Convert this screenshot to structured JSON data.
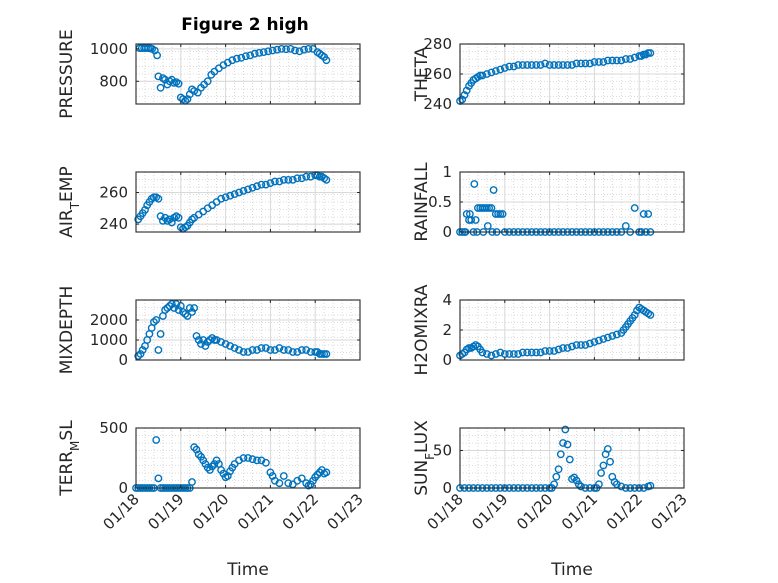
{
  "figure": {
    "title": "Figure 2 high",
    "marker_color": "#0072BD",
    "axis_color": "#262626",
    "grid_color": "#cfcfcf",
    "background": "#ffffff"
  },
  "chart_data": [
    {
      "type": "scatter",
      "ylabel": "PRESSURE",
      "xlabel": "",
      "xlim": [
        0,
        5
      ],
      "ylim": [
        660,
        1030
      ],
      "yticks": [
        800,
        1000
      ],
      "ytick_labels": [
        "800",
        "1000"
      ],
      "xticks": [
        0,
        1,
        2,
        3,
        4,
        5
      ],
      "xtick_labels": [],
      "grid": true,
      "x": [
        0.08,
        0.13,
        0.18,
        0.22,
        0.27,
        0.32,
        0.36,
        0.42,
        0.47,
        0.5,
        0.55,
        0.6,
        0.65,
        0.7,
        0.75,
        0.8,
        0.85,
        0.9,
        0.95,
        1.0,
        1.05,
        1.1,
        1.15,
        1.2,
        1.25,
        1.3,
        1.38,
        1.45,
        1.52,
        1.6,
        1.68,
        1.75,
        1.85,
        1.95,
        2.05,
        2.15,
        2.25,
        2.35,
        2.45,
        2.55,
        2.65,
        2.75,
        2.85,
        2.95,
        3.05,
        3.15,
        3.25,
        3.35,
        3.45,
        3.55,
        3.65,
        3.75,
        3.85,
        3.95,
        4.05,
        4.1,
        4.15,
        4.2,
        4.25
      ],
      "y": [
        1005,
        1005,
        1005,
        1005,
        1005,
        1003,
        1000,
        990,
        960,
        830,
        760,
        820,
        810,
        780,
        800,
        810,
        790,
        795,
        785,
        700,
        690,
        680,
        690,
        720,
        750,
        740,
        730,
        760,
        780,
        800,
        840,
        860,
        880,
        900,
        915,
        930,
        940,
        945,
        955,
        960,
        970,
        975,
        980,
        985,
        990,
        995,
        1000,
        998,
        1000,
        990,
        985,
        995,
        1000,
        1000,
        980,
        970,
        960,
        950,
        930
      ]
    },
    {
      "type": "scatter",
      "ylabel": "THETA",
      "xlabel": "",
      "xlim": [
        0,
        5
      ],
      "ylim": [
        240,
        280
      ],
      "yticks": [
        240,
        260,
        280
      ],
      "ytick_labels": [
        "240",
        "260",
        "280"
      ],
      "xticks": [
        0,
        1,
        2,
        3,
        4,
        5
      ],
      "xtick_labels": [],
      "grid": true,
      "x": [
        0.0,
        0.05,
        0.1,
        0.15,
        0.2,
        0.25,
        0.3,
        0.35,
        0.4,
        0.45,
        0.5,
        0.6,
        0.7,
        0.8,
        0.9,
        1.0,
        1.1,
        1.2,
        1.3,
        1.4,
        1.5,
        1.6,
        1.7,
        1.8,
        1.9,
        2.0,
        2.1,
        2.2,
        2.3,
        2.4,
        2.5,
        2.6,
        2.7,
        2.8,
        2.9,
        3.0,
        3.1,
        3.2,
        3.3,
        3.4,
        3.5,
        3.6,
        3.7,
        3.8,
        3.9,
        4.0,
        4.05,
        4.1,
        4.15,
        4.2,
        4.25
      ],
      "y": [
        242,
        243,
        246,
        249,
        252,
        254,
        256,
        257,
        258,
        259,
        259,
        260,
        261,
        262,
        263,
        264,
        265,
        265,
        266,
        266,
        266,
        266,
        266,
        266,
        267,
        266,
        266,
        266,
        266,
        266,
        266,
        267,
        267,
        267,
        267,
        268,
        268,
        268,
        269,
        269,
        269,
        269,
        270,
        270,
        271,
        272,
        272,
        273,
        273,
        274,
        274
      ]
    },
    {
      "type": "scatter",
      "ylabel": "AIR_TEMP",
      "xlabel": "",
      "xlim": [
        0,
        5
      ],
      "ylim": [
        235,
        273
      ],
      "yticks": [
        240,
        260
      ],
      "ytick_labels": [
        "240",
        "260"
      ],
      "xticks": [
        0,
        1,
        2,
        3,
        4,
        5
      ],
      "xtick_labels": [],
      "grid": true,
      "x": [
        0.05,
        0.1,
        0.15,
        0.2,
        0.25,
        0.3,
        0.35,
        0.4,
        0.45,
        0.5,
        0.55,
        0.6,
        0.65,
        0.7,
        0.75,
        0.8,
        0.85,
        0.9,
        0.95,
        1.0,
        1.05,
        1.1,
        1.15,
        1.2,
        1.25,
        1.3,
        1.4,
        1.5,
        1.6,
        1.7,
        1.8,
        1.9,
        2.0,
        2.1,
        2.2,
        2.3,
        2.4,
        2.5,
        2.6,
        2.7,
        2.8,
        2.9,
        3.0,
        3.1,
        3.2,
        3.3,
        3.4,
        3.5,
        3.6,
        3.7,
        3.8,
        3.9,
        4.0,
        4.05,
        4.1,
        4.15,
        4.2,
        4.25
      ],
      "y": [
        243,
        245,
        247,
        249,
        252,
        254,
        256,
        257,
        257,
        256,
        245,
        242,
        244,
        242,
        243,
        241,
        244,
        245,
        244,
        238,
        237,
        238,
        239,
        241,
        243,
        244,
        246,
        248,
        250,
        252,
        254,
        256,
        257,
        258,
        259,
        260,
        261,
        262,
        263,
        264,
        265,
        265,
        266,
        267,
        267,
        268,
        268,
        268,
        269,
        269,
        270,
        270,
        271,
        271,
        270,
        270,
        269,
        268
      ]
    },
    {
      "type": "scatter",
      "ylabel": "RAINFALL",
      "xlabel": "",
      "xlim": [
        0,
        5
      ],
      "ylim": [
        0,
        1
      ],
      "yticks": [
        0,
        0.5,
        1
      ],
      "ytick_labels": [
        "0",
        "0.5",
        "1"
      ],
      "xticks": [
        0,
        1,
        2,
        3,
        4,
        5
      ],
      "xtick_labels": [],
      "grid": true,
      "x": [
        0.0,
        0.05,
        0.1,
        0.12,
        0.15,
        0.2,
        0.22,
        0.25,
        0.3,
        0.32,
        0.35,
        0.38,
        0.4,
        0.45,
        0.5,
        0.52,
        0.55,
        0.6,
        0.62,
        0.65,
        0.7,
        0.72,
        0.75,
        0.8,
        0.82,
        0.85,
        0.9,
        0.95,
        1.0,
        1.1,
        1.2,
        1.3,
        1.4,
        1.5,
        1.6,
        1.7,
        1.8,
        1.9,
        2.0,
        2.1,
        2.2,
        2.3,
        2.4,
        2.5,
        2.6,
        2.7,
        2.8,
        2.9,
        3.0,
        3.1,
        3.2,
        3.3,
        3.4,
        3.5,
        3.6,
        3.7,
        3.8,
        3.9,
        4.0,
        4.05,
        4.1,
        4.15,
        4.2,
        4.25
      ],
      "y": [
        0,
        0,
        0,
        0,
        0.3,
        0.2,
        0.3,
        0.2,
        0,
        0.8,
        0.2,
        0,
        0.4,
        0.4,
        0.4,
        0,
        0.4,
        0.4,
        0.1,
        0.4,
        0.4,
        0,
        0.7,
        0.3,
        0,
        0.3,
        0.3,
        0.3,
        0,
        0,
        0,
        0,
        0,
        0,
        0,
        0,
        0,
        0,
        0,
        0,
        0,
        0,
        0,
        0,
        0,
        0,
        0,
        0,
        0,
        0,
        0,
        0,
        0,
        0,
        0,
        0.1,
        0,
        0.4,
        0,
        0,
        0.3,
        0,
        0.3,
        0
      ]
    },
    {
      "type": "scatter",
      "ylabel": "MIXDEPTH",
      "xlabel": "",
      "xlim": [
        0,
        5
      ],
      "ylim": [
        0,
        3000
      ],
      "yticks": [
        0,
        1000,
        2000
      ],
      "ytick_labels": [
        "0",
        "1000",
        "2000"
      ],
      "xticks": [
        0,
        1,
        2,
        3,
        4,
        5
      ],
      "xtick_labels": [],
      "grid": true,
      "x": [
        0.05,
        0.1,
        0.15,
        0.2,
        0.25,
        0.3,
        0.35,
        0.4,
        0.45,
        0.5,
        0.55,
        0.6,
        0.65,
        0.7,
        0.75,
        0.8,
        0.85,
        0.9,
        0.95,
        1.0,
        1.05,
        1.1,
        1.15,
        1.2,
        1.25,
        1.3,
        1.35,
        1.4,
        1.45,
        1.5,
        1.55,
        1.6,
        1.65,
        1.7,
        1.75,
        1.8,
        1.9,
        2.0,
        2.1,
        2.2,
        2.3,
        2.4,
        2.5,
        2.6,
        2.7,
        2.8,
        2.9,
        3.0,
        3.1,
        3.2,
        3.3,
        3.4,
        3.5,
        3.6,
        3.7,
        3.8,
        3.9,
        4.0,
        4.05,
        4.1,
        4.15,
        4.2,
        4.25
      ],
      "y": [
        200,
        300,
        500,
        700,
        1000,
        1300,
        1600,
        1900,
        2000,
        500,
        1300,
        2200,
        2500,
        2600,
        2700,
        2800,
        2600,
        2800,
        2500,
        2700,
        2400,
        2300,
        2200,
        2600,
        2400,
        2600,
        1200,
        1000,
        800,
        1000,
        700,
        900,
        1000,
        1100,
        1000,
        1000,
        900,
        800,
        700,
        600,
        500,
        400,
        400,
        500,
        500,
        600,
        600,
        500,
        500,
        600,
        500,
        500,
        400,
        400,
        500,
        500,
        400,
        400,
        400,
        300,
        300,
        300,
        300
      ]
    },
    {
      "type": "scatter",
      "ylabel": "H2OMIXRA",
      "xlabel": "",
      "xlim": [
        0,
        5
      ],
      "ylim": [
        0,
        4
      ],
      "yticks": [
        0,
        2,
        4
      ],
      "ytick_labels": [
        "0",
        "2",
        "4"
      ],
      "xticks": [
        0,
        1,
        2,
        3,
        4,
        5
      ],
      "xtick_labels": [],
      "grid": true,
      "x": [
        0.0,
        0.05,
        0.1,
        0.15,
        0.2,
        0.25,
        0.3,
        0.35,
        0.4,
        0.45,
        0.5,
        0.6,
        0.7,
        0.8,
        0.9,
        1.0,
        1.1,
        1.2,
        1.3,
        1.4,
        1.5,
        1.6,
        1.7,
        1.8,
        1.9,
        2.0,
        2.1,
        2.2,
        2.3,
        2.4,
        2.5,
        2.6,
        2.7,
        2.8,
        2.9,
        3.0,
        3.1,
        3.2,
        3.3,
        3.4,
        3.5,
        3.6,
        3.65,
        3.7,
        3.75,
        3.8,
        3.85,
        3.9,
        3.95,
        4.0,
        4.05,
        4.1,
        4.15,
        4.2,
        4.25
      ],
      "y": [
        0.3,
        0.4,
        0.5,
        0.7,
        0.8,
        0.8,
        0.9,
        1.0,
        0.9,
        0.7,
        0.5,
        0.4,
        0.3,
        0.4,
        0.5,
        0.4,
        0.4,
        0.4,
        0.4,
        0.5,
        0.5,
        0.5,
        0.5,
        0.5,
        0.6,
        0.6,
        0.6,
        0.7,
        0.8,
        0.8,
        0.9,
        1.0,
        1.0,
        1.0,
        1.1,
        1.2,
        1.3,
        1.4,
        1.5,
        1.6,
        1.7,
        1.8,
        2.0,
        2.2,
        2.4,
        2.6,
        2.8,
        3.0,
        3.3,
        3.5,
        3.4,
        3.3,
        3.2,
        3.1,
        3.0
      ]
    },
    {
      "type": "scatter",
      "ylabel": "TERR_MSL",
      "xlabel": "Time",
      "xlim": [
        0,
        5
      ],
      "ylim": [
        0,
        500
      ],
      "yticks": [
        0,
        500
      ],
      "ytick_labels": [
        "0",
        "500"
      ],
      "xticks": [
        0,
        1,
        2,
        3,
        4,
        5
      ],
      "xtick_labels": [
        "01/18",
        "01/19",
        "01/20",
        "01/21",
        "01/22",
        "01/23"
      ],
      "grid": true,
      "x": [
        0.0,
        0.05,
        0.1,
        0.15,
        0.2,
        0.25,
        0.3,
        0.35,
        0.4,
        0.45,
        0.5,
        0.55,
        0.6,
        0.65,
        0.7,
        0.75,
        0.8,
        0.85,
        0.9,
        0.95,
        1.0,
        1.05,
        1.1,
        1.15,
        1.2,
        1.25,
        1.3,
        1.35,
        1.4,
        1.45,
        1.5,
        1.55,
        1.6,
        1.65,
        1.7,
        1.75,
        1.8,
        1.85,
        1.9,
        1.95,
        2.0,
        2.05,
        2.1,
        2.15,
        2.2,
        2.3,
        2.4,
        2.5,
        2.6,
        2.7,
        2.8,
        2.9,
        3.0,
        3.05,
        3.1,
        3.2,
        3.3,
        3.4,
        3.5,
        3.6,
        3.7,
        3.8,
        3.85,
        3.9,
        3.95,
        4.0,
        4.05,
        4.1,
        4.15,
        4.2,
        4.25
      ],
      "y": [
        0,
        0,
        0,
        0,
        0,
        0,
        0,
        0,
        0,
        400,
        80,
        0,
        0,
        0,
        0,
        0,
        0,
        0,
        0,
        0,
        0,
        0,
        0,
        0,
        0,
        50,
        340,
        320,
        280,
        260,
        230,
        200,
        170,
        150,
        180,
        200,
        230,
        200,
        150,
        120,
        90,
        100,
        140,
        170,
        200,
        230,
        250,
        250,
        240,
        230,
        230,
        210,
        130,
        100,
        60,
        40,
        100,
        40,
        30,
        60,
        80,
        40,
        20,
        30,
        60,
        90,
        110,
        130,
        150,
        120,
        130
      ]
    },
    {
      "type": "scatter",
      "ylabel": "SUN_FLUX",
      "xlabel": "Time",
      "xlim": [
        0,
        5
      ],
      "ylim": [
        0,
        80
      ],
      "yticks": [
        0,
        50
      ],
      "ytick_labels": [
        "0",
        "50"
      ],
      "xticks": [
        0,
        1,
        2,
        3,
        4,
        5
      ],
      "xtick_labels": [
        "01/18",
        "01/19",
        "01/20",
        "01/21",
        "01/22",
        "01/23"
      ],
      "grid": true,
      "x": [
        0.0,
        0.1,
        0.2,
        0.3,
        0.4,
        0.5,
        0.6,
        0.7,
        0.8,
        0.9,
        1.0,
        1.1,
        1.2,
        1.3,
        1.4,
        1.5,
        1.6,
        1.7,
        1.8,
        1.9,
        2.0,
        2.05,
        2.1,
        2.15,
        2.2,
        2.25,
        2.3,
        2.35,
        2.4,
        2.45,
        2.5,
        2.55,
        2.6,
        2.65,
        2.7,
        2.8,
        2.9,
        3.0,
        3.05,
        3.1,
        3.15,
        3.2,
        3.25,
        3.3,
        3.35,
        3.4,
        3.45,
        3.5,
        3.6,
        3.7,
        3.8,
        3.9,
        4.0,
        4.1,
        4.2,
        4.25
      ],
      "y": [
        0,
        0,
        0,
        0,
        0,
        0,
        0,
        0,
        0,
        0,
        0,
        0,
        0,
        0,
        0,
        0,
        0,
        0,
        0,
        0,
        0,
        0,
        5,
        15,
        25,
        45,
        60,
        78,
        58,
        38,
        12,
        14,
        10,
        5,
        2,
        0,
        0,
        0,
        0,
        5,
        20,
        30,
        45,
        52,
        35,
        15,
        8,
        5,
        2,
        0,
        0,
        0,
        0,
        0,
        2,
        3
      ]
    }
  ]
}
